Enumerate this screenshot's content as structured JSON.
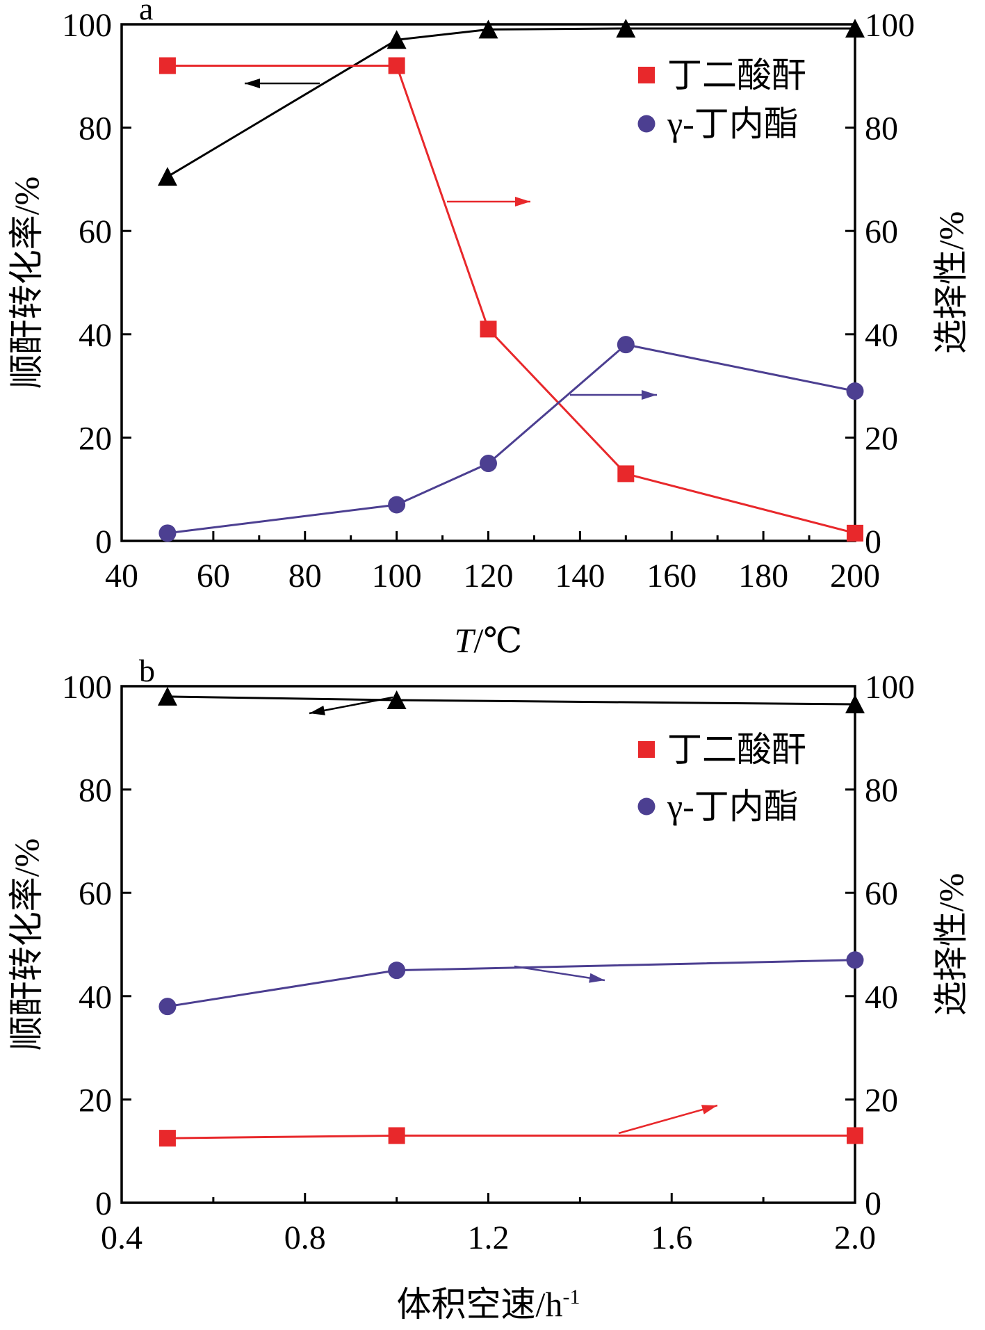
{
  "chart_data": [
    {
      "panel_label": "a",
      "type": "line",
      "xlabel": "T/℃",
      "xlabel_parts": {
        "italic": "T",
        "rest": "/℃"
      },
      "ylabel": "顺酐转化率/%",
      "ylabel_right": "选择性/%",
      "xlim": [
        40,
        200
      ],
      "ylim": [
        0,
        100
      ],
      "ylim_right": [
        0,
        100
      ],
      "x_ticks": [
        "40",
        "60",
        "80",
        "100",
        "120",
        "140",
        "160",
        "180",
        "200"
      ],
      "y_ticks": [
        "0",
        "20",
        "40",
        "60",
        "80",
        "100"
      ],
      "y_ticks_right": [
        "0",
        "20",
        "40",
        "60",
        "80",
        "100"
      ],
      "legend_position": "top-right",
      "series": [
        {
          "axis": "left",
          "color": "#000000",
          "marker": "triangle",
          "x": [
            50,
            100,
            120,
            150,
            200
          ],
          "y": [
            70.5,
            97,
            99,
            99.2,
            99.2
          ]
        },
        {
          "name": "丁二酸酐",
          "axis": "right",
          "color": "#e8282b",
          "marker": "square",
          "x": [
            50,
            100,
            120,
            150,
            200
          ],
          "y": [
            92,
            92,
            41,
            13,
            1.5
          ]
        },
        {
          "name": "γ-丁内酯",
          "axis": "right",
          "color": "#4c3f91",
          "marker": "circle",
          "x": [
            50,
            100,
            120,
            150,
            200
          ],
          "y": [
            1.5,
            7,
            15,
            38,
            29
          ]
        }
      ]
    },
    {
      "panel_label": "b",
      "type": "line",
      "xlabel": "体积空速/h-1",
      "xlabel_parts": {
        "base": "体积空速/h",
        "sup": "-1"
      },
      "ylabel": "顺酐转化率/%",
      "ylabel_right": "选择性/%",
      "xlim": [
        0.4,
        2.0
      ],
      "ylim": [
        0,
        100
      ],
      "ylim_right": [
        0,
        100
      ],
      "x_ticks": [
        "0.4",
        "0.8",
        "1.2",
        "1.6",
        "2.0"
      ],
      "y_ticks": [
        "0",
        "20",
        "40",
        "60",
        "80",
        "100"
      ],
      "y_ticks_right": [
        "0",
        "20",
        "40",
        "60",
        "80",
        "100"
      ],
      "legend_position": "top-right",
      "series": [
        {
          "axis": "left",
          "color": "#000000",
          "marker": "triangle",
          "x": [
            0.5,
            1.0,
            2.0
          ],
          "y": [
            98,
            97.3,
            96.5
          ]
        },
        {
          "name": "丁二酸酐",
          "axis": "right",
          "color": "#e8282b",
          "marker": "square",
          "x": [
            0.5,
            1.0,
            2.0
          ],
          "y": [
            12.5,
            13,
            13
          ]
        },
        {
          "name": "γ-丁内酯",
          "axis": "right",
          "color": "#4c3f91",
          "marker": "circle",
          "x": [
            0.5,
            1.0,
            2.0
          ],
          "y": [
            38,
            45,
            47
          ]
        }
      ]
    }
  ]
}
